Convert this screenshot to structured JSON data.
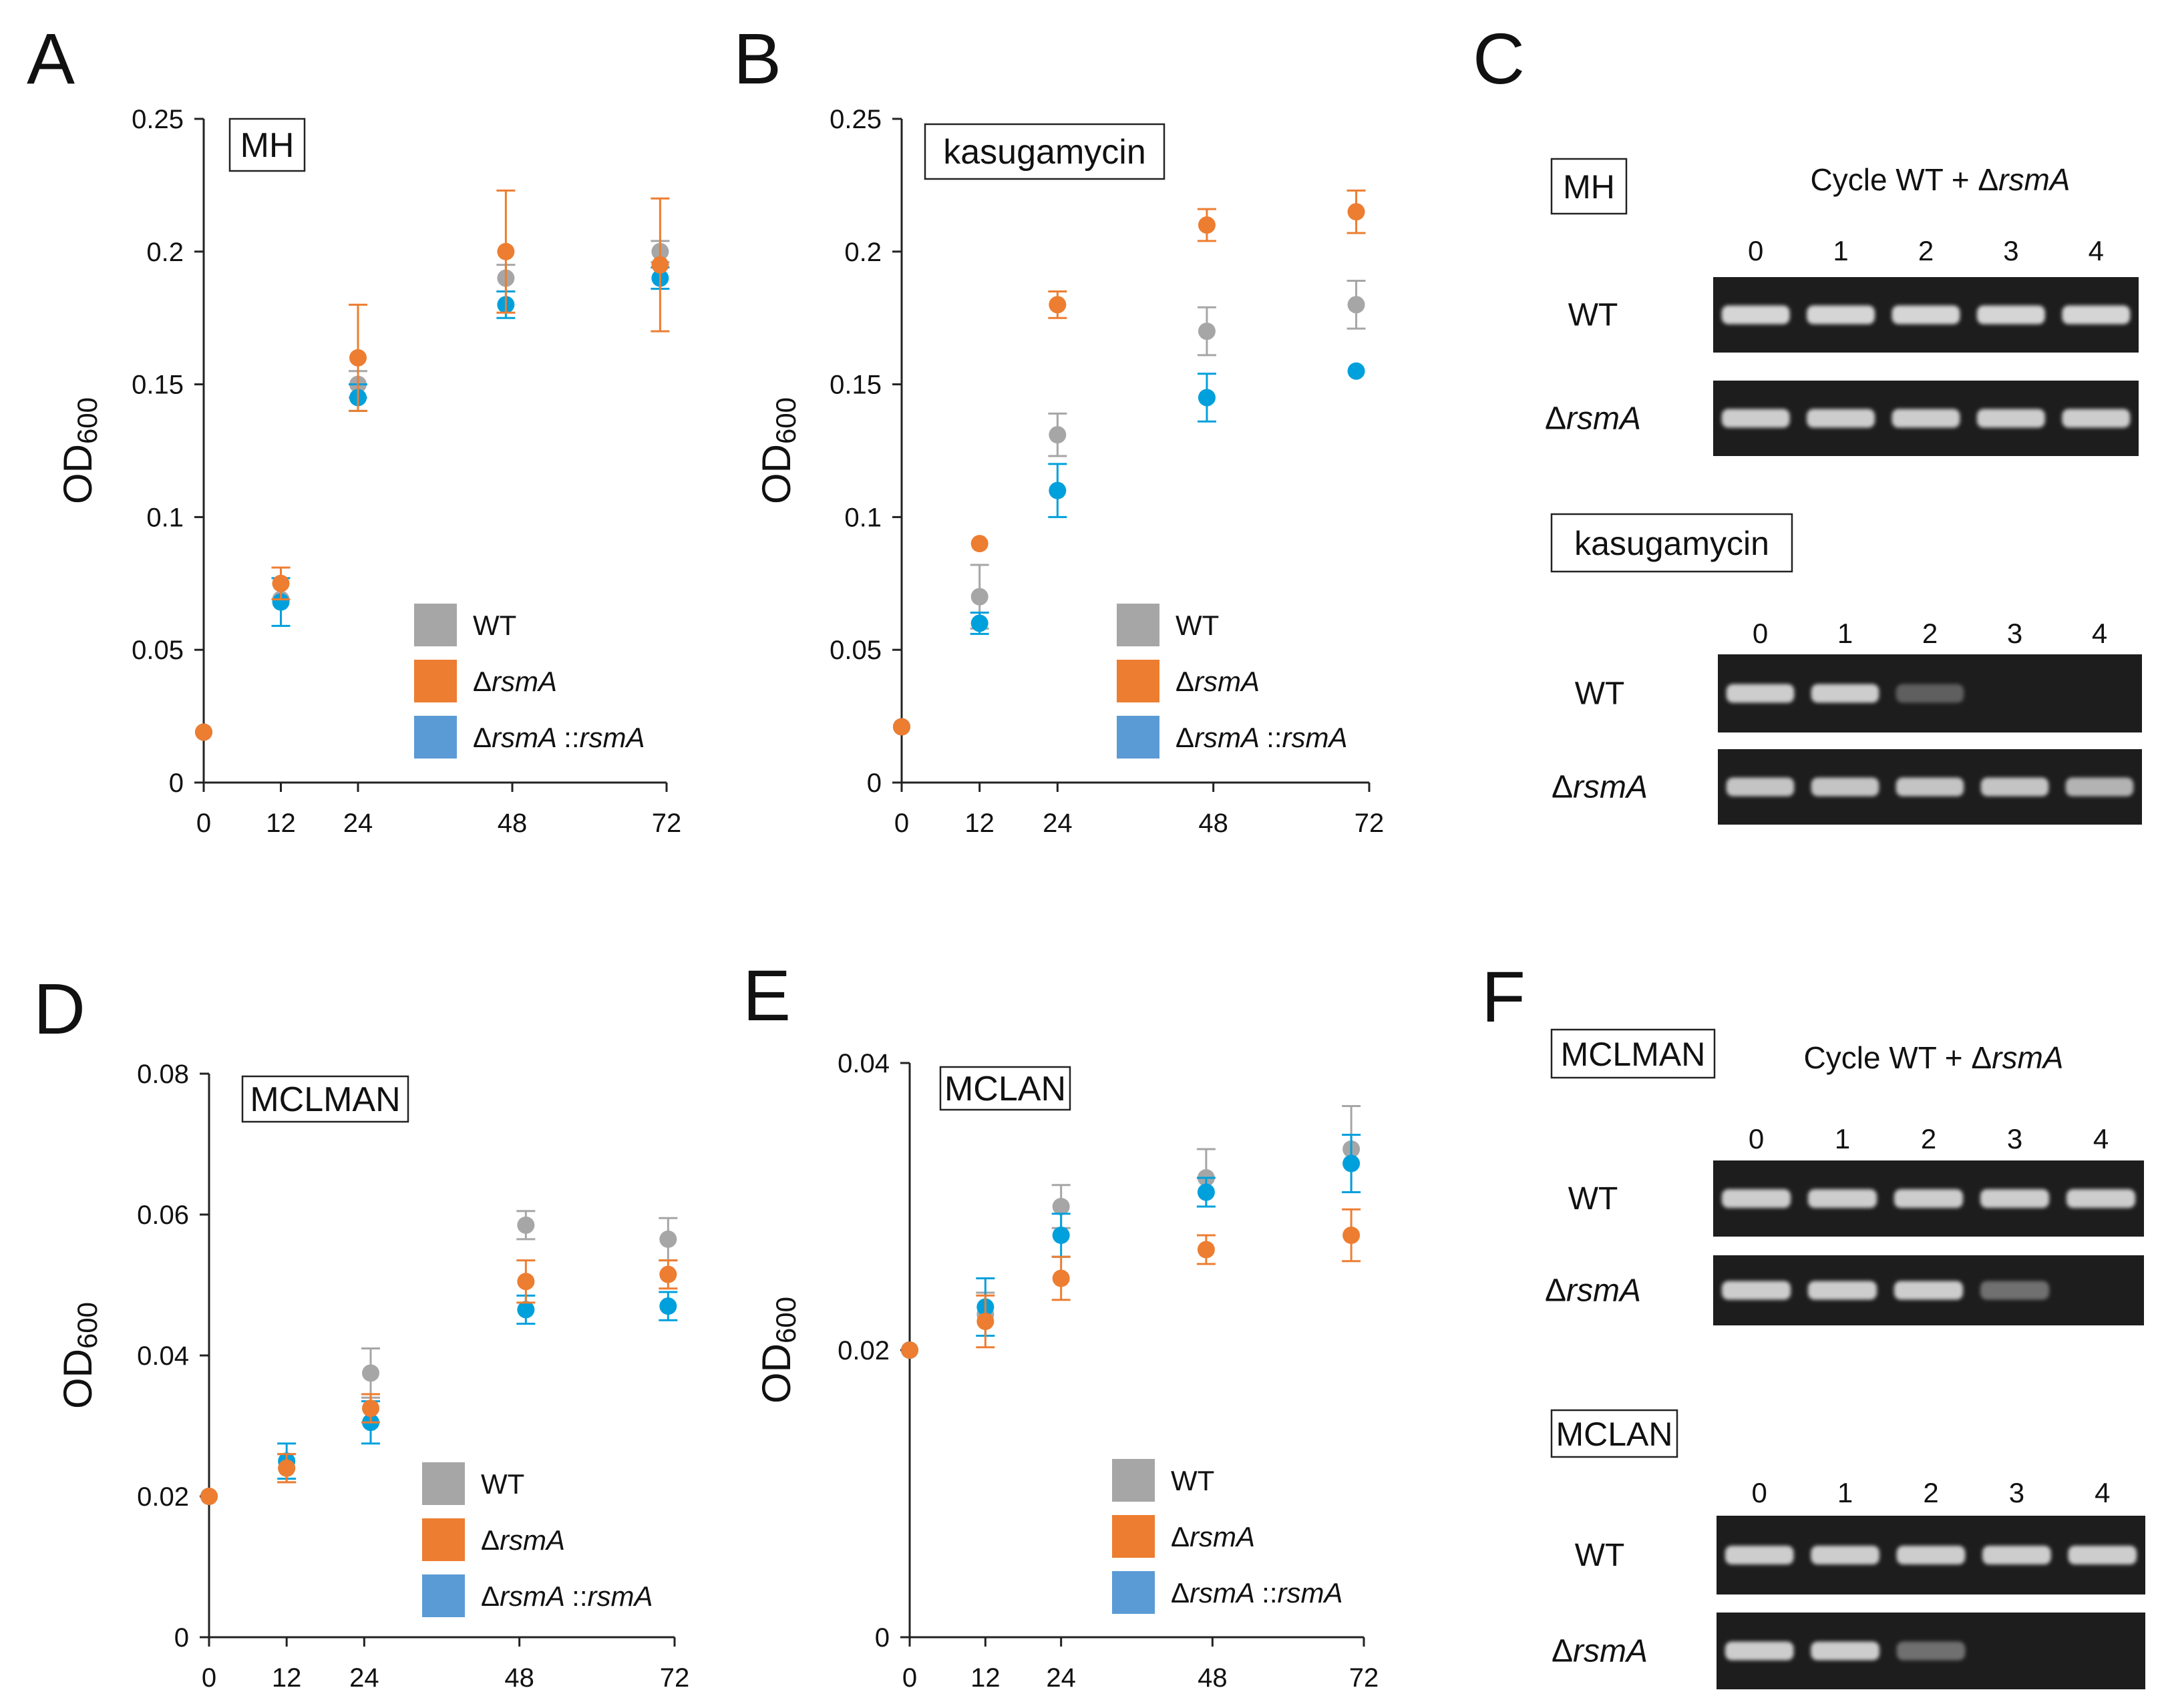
{
  "figure": {
    "panel_letters": [
      "A",
      "B",
      "C",
      "D",
      "E",
      "F"
    ],
    "y_label_main": "OD",
    "y_label_sub": "600"
  },
  "colors": {
    "WT": "#a6a6a6",
    "rsmA": "#ed7d31",
    "comp": "#00a0dc",
    "comp_legend": "#5b9bd5"
  },
  "chart_data": [
    {
      "type": "scatter",
      "panel": "A",
      "title": "MH",
      "xlabel": "",
      "ylabel": "OD600",
      "xlim": [
        0,
        72
      ],
      "xticks": [
        0,
        12,
        24,
        48,
        72
      ],
      "ylim": [
        0,
        0.25
      ],
      "yticks": [
        0,
        0.05,
        0.1,
        0.15,
        0.2,
        0.25
      ],
      "ytick_labels": [
        "0",
        "0.05",
        "0.1",
        "0.15",
        "0.2",
        "0.25"
      ],
      "legend": [
        "WT",
        "ΔrsmA",
        "ΔrsmA ::rsmA"
      ],
      "series": [
        {
          "name": "WT",
          "x": [
            0,
            12,
            24,
            47,
            71
          ],
          "y": [
            0.019,
            0.069,
            0.15,
            0.19,
            0.2
          ],
          "err": [
            0,
            0,
            0.005,
            0.005,
            0.004
          ]
        },
        {
          "name": "ΔrsmA",
          "x": [
            0,
            12,
            24,
            47,
            71
          ],
          "y": [
            0.019,
            0.075,
            0.16,
            0.2,
            0.195
          ],
          "err": [
            0,
            0.006,
            0.02,
            0.023,
            0.025
          ]
        },
        {
          "name": "ΔrsmA ::rsmA",
          "x": [
            0,
            12,
            24,
            47,
            71
          ],
          "y": [
            0.019,
            0.068,
            0.145,
            0.18,
            0.19
          ],
          "err": [
            0,
            0.009,
            0.005,
            0.005,
            0.004
          ]
        }
      ]
    },
    {
      "type": "scatter",
      "panel": "B",
      "title": "kasugamycin",
      "xlabel": "",
      "ylabel": "OD600",
      "xlim": [
        0,
        72
      ],
      "xticks": [
        0,
        12,
        24,
        48,
        72
      ],
      "ylim": [
        0,
        0.25
      ],
      "yticks": [
        0,
        0.05,
        0.1,
        0.15,
        0.2,
        0.25
      ],
      "ytick_labels": [
        "0",
        "0.05",
        "0.1",
        "0.15",
        "0.2",
        "0.25"
      ],
      "legend": [
        "WT",
        "ΔrsmA",
        "ΔrsmA ::rsmA"
      ],
      "series": [
        {
          "name": "WT",
          "x": [
            0,
            12,
            24,
            47,
            70
          ],
          "y": [
            0.021,
            0.07,
            0.131,
            0.17,
            0.18
          ],
          "err": [
            0,
            0.012,
            0.008,
            0.009,
            0.009
          ]
        },
        {
          "name": "ΔrsmA",
          "x": [
            0,
            12,
            24,
            47,
            70
          ],
          "y": [
            0.021,
            0.09,
            0.18,
            0.21,
            0.215
          ],
          "err": [
            0,
            0,
            0.005,
            0.006,
            0.008
          ]
        },
        {
          "name": "ΔrsmA ::rsmA",
          "x": [
            0,
            12,
            24,
            47,
            70
          ],
          "y": [
            0.021,
            0.06,
            0.11,
            0.145,
            0.155
          ],
          "err": [
            0,
            0.004,
            0.01,
            0.009,
            0
          ]
        }
      ]
    },
    {
      "type": "scatter",
      "panel": "D",
      "title": "MCLMAN",
      "xlabel": "",
      "ylabel": "OD600",
      "xlim": [
        0,
        72
      ],
      "xticks": [
        0,
        12,
        24,
        48,
        72
      ],
      "ylim": [
        0,
        0.08
      ],
      "yticks": [
        0,
        0.02,
        0.04,
        0.06,
        0.08
      ],
      "ytick_labels": [
        "0",
        "0.02",
        "0.04",
        "0.06",
        "0.08"
      ],
      "legend": [
        "WT",
        "ΔrsmA",
        "ΔrsmA ::rsmA"
      ],
      "series": [
        {
          "name": "WT",
          "x": [
            0,
            12,
            25,
            49,
            71
          ],
          "y": [
            0.02,
            0.024,
            0.0375,
            0.0585,
            0.0565
          ],
          "err": [
            0,
            0.002,
            0.0035,
            0.002,
            0.003
          ]
        },
        {
          "name": "ΔrsmA",
          "x": [
            0,
            12,
            25,
            49,
            71
          ],
          "y": [
            0.02,
            0.024,
            0.0325,
            0.0505,
            0.0515
          ],
          "err": [
            0,
            0.002,
            0.002,
            0.003,
            0.002
          ]
        },
        {
          "name": "ΔrsmA ::rsmA",
          "x": [
            0,
            12,
            25,
            49,
            71
          ],
          "y": [
            0.02,
            0.025,
            0.0305,
            0.0465,
            0.047
          ],
          "err": [
            0,
            0.0025,
            0.003,
            0.002,
            0.002
          ]
        }
      ]
    },
    {
      "type": "scatter",
      "panel": "E",
      "title": "MCLAN",
      "xlabel": "",
      "ylabel": "OD600",
      "xlim": [
        0,
        72
      ],
      "xticks": [
        0,
        12,
        24,
        48,
        72
      ],
      "ylim": [
        0,
        0.04
      ],
      "yticks": [
        0,
        0.02,
        0.04
      ],
      "ytick_labels": [
        "0",
        "0.02",
        "0.04"
      ],
      "legend": [
        "WT",
        "ΔrsmA",
        "ΔrsmA ::rsmA"
      ],
      "series": [
        {
          "name": "WT",
          "x": [
            0,
            12,
            24,
            47,
            70
          ],
          "y": [
            0.02,
            0.0225,
            0.03,
            0.032,
            0.034
          ],
          "err": [
            0,
            0.0015,
            0.0015,
            0.002,
            0.003
          ]
        },
        {
          "name": "ΔrsmA",
          "x": [
            0,
            12,
            24,
            47,
            70
          ],
          "y": [
            0.02,
            0.022,
            0.025,
            0.027,
            0.028
          ],
          "err": [
            0,
            0.0018,
            0.0015,
            0.001,
            0.0018
          ]
        },
        {
          "name": "ΔrsmA ::rsmA",
          "x": [
            0,
            12,
            24,
            47,
            70
          ],
          "y": [
            0.02,
            0.023,
            0.028,
            0.031,
            0.033
          ],
          "err": [
            0,
            0.002,
            0.0015,
            0.001,
            0.002
          ]
        }
      ]
    }
  ],
  "gels": [
    {
      "panel": "C",
      "title": "Cycle WT + ΔrsmA",
      "blocks": [
        {
          "condition": "MH",
          "cycles": [
            "0",
            "1",
            "2",
            "3",
            "4"
          ],
          "rows": [
            {
              "label": "WT",
              "bands": [
                0.9,
                0.9,
                0.9,
                0.9,
                0.9
              ]
            },
            {
              "label": "ΔrsmA",
              "bands": [
                0.85,
                0.85,
                0.85,
                0.85,
                0.85
              ]
            }
          ]
        },
        {
          "condition": "kasugamycin",
          "cycles": [
            "0",
            "1",
            "2",
            "3",
            "4"
          ],
          "rows": [
            {
              "label": "WT",
              "bands": [
                0.85,
                0.85,
                0.2,
                0,
                0
              ]
            },
            {
              "label": "ΔrsmA",
              "bands": [
                0.8,
                0.8,
                0.8,
                0.8,
                0.7
              ]
            }
          ]
        }
      ]
    },
    {
      "panel": "F",
      "title": "Cycle WT + ΔrsmA",
      "blocks": [
        {
          "condition": "MCLMAN",
          "cycles": [
            "0",
            "1",
            "2",
            "3",
            "4"
          ],
          "rows": [
            {
              "label": "WT",
              "bands": [
                0.85,
                0.85,
                0.85,
                0.85,
                0.85
              ]
            },
            {
              "label": "ΔrsmA",
              "bands": [
                0.85,
                0.85,
                0.85,
                0.3,
                0
              ]
            }
          ]
        },
        {
          "condition": "MCLAN",
          "cycles": [
            "0",
            "1",
            "2",
            "3",
            "4"
          ],
          "rows": [
            {
              "label": "WT",
              "bands": [
                0.85,
                0.85,
                0.85,
                0.85,
                0.85
              ]
            },
            {
              "label": "ΔrsmA",
              "bands": [
                0.85,
                0.85,
                0.3,
                0,
                0
              ]
            }
          ]
        }
      ]
    }
  ]
}
